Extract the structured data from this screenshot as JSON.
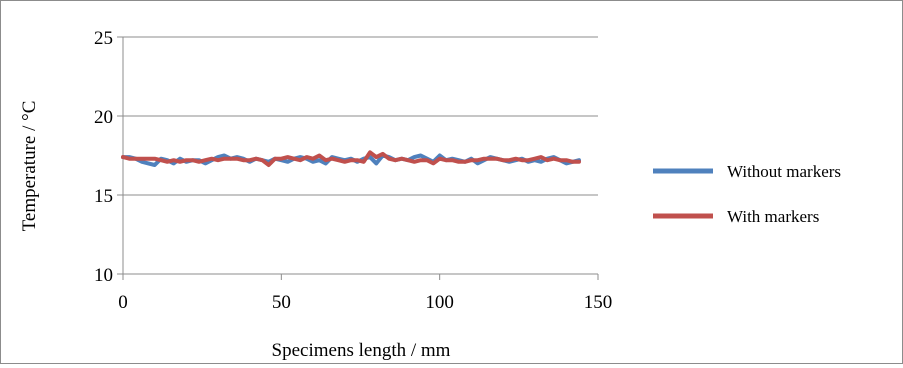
{
  "chart_data": {
    "type": "line",
    "title": "",
    "xlabel": "Specimens length / mm",
    "ylabel": "Temperature / °C",
    "xlim": [
      0,
      150
    ],
    "ylim": [
      10,
      25
    ],
    "x_ticks": [
      0,
      50,
      100,
      150
    ],
    "y_ticks": [
      10,
      15,
      20,
      25
    ],
    "x_tick_labels": [
      "0",
      "50",
      "100",
      "150"
    ],
    "y_tick_labels": [
      "10",
      "15",
      "20",
      "25"
    ],
    "grid": "horizontal",
    "legend": "right",
    "series": [
      {
        "name": "Without markers",
        "color": "#4f81bd",
        "x": [
          0,
          2,
          4,
          6,
          8,
          10,
          12,
          14,
          16,
          18,
          20,
          22,
          24,
          26,
          28,
          30,
          32,
          34,
          36,
          38,
          40,
          42,
          44,
          46,
          48,
          50,
          52,
          54,
          56,
          58,
          60,
          62,
          64,
          66,
          68,
          70,
          72,
          74,
          76,
          78,
          80,
          82,
          84,
          86,
          88,
          90,
          92,
          94,
          96,
          98,
          100,
          102,
          104,
          106,
          108,
          110,
          112,
          114,
          116,
          118,
          120,
          122,
          124,
          126,
          128,
          130,
          132,
          134,
          136,
          138,
          140,
          142,
          144
        ],
        "values": [
          17.4,
          17.4,
          17.3,
          17.1,
          17.0,
          16.9,
          17.3,
          17.2,
          17.0,
          17.3,
          17.1,
          17.2,
          17.2,
          17.0,
          17.2,
          17.4,
          17.5,
          17.3,
          17.4,
          17.3,
          17.1,
          17.3,
          17.2,
          17.1,
          17.3,
          17.2,
          17.1,
          17.3,
          17.4,
          17.3,
          17.1,
          17.2,
          17.0,
          17.4,
          17.3,
          17.2,
          17.3,
          17.1,
          17.3,
          17.4,
          17.0,
          17.5,
          17.4,
          17.2,
          17.3,
          17.2,
          17.4,
          17.5,
          17.3,
          17.1,
          17.5,
          17.2,
          17.3,
          17.2,
          17.1,
          17.3,
          17.0,
          17.2,
          17.4,
          17.3,
          17.2,
          17.1,
          17.2,
          17.3,
          17.1,
          17.2,
          17.1,
          17.3,
          17.4,
          17.2,
          17.0,
          17.1,
          17.2
        ]
      },
      {
        "name": "With markers",
        "color": "#c0504d",
        "x": [
          0,
          2,
          4,
          6,
          8,
          10,
          12,
          14,
          16,
          18,
          20,
          22,
          24,
          26,
          28,
          30,
          32,
          34,
          36,
          38,
          40,
          42,
          44,
          46,
          48,
          50,
          52,
          54,
          56,
          58,
          60,
          62,
          64,
          66,
          68,
          70,
          72,
          74,
          76,
          78,
          80,
          82,
          84,
          86,
          88,
          90,
          92,
          94,
          96,
          98,
          100,
          102,
          104,
          106,
          108,
          110,
          112,
          114,
          116,
          118,
          120,
          122,
          124,
          126,
          128,
          130,
          132,
          134,
          136,
          138,
          140,
          142,
          144
        ],
        "values": [
          17.4,
          17.3,
          17.3,
          17.3,
          17.3,
          17.3,
          17.2,
          17.1,
          17.2,
          17.1,
          17.2,
          17.2,
          17.1,
          17.2,
          17.3,
          17.2,
          17.3,
          17.3,
          17.3,
          17.2,
          17.2,
          17.3,
          17.2,
          16.9,
          17.3,
          17.3,
          17.4,
          17.3,
          17.2,
          17.4,
          17.3,
          17.5,
          17.2,
          17.3,
          17.2,
          17.1,
          17.2,
          17.2,
          17.1,
          17.7,
          17.4,
          17.6,
          17.3,
          17.2,
          17.3,
          17.2,
          17.1,
          17.2,
          17.2,
          17.0,
          17.3,
          17.2,
          17.2,
          17.1,
          17.1,
          17.2,
          17.2,
          17.3,
          17.3,
          17.3,
          17.2,
          17.2,
          17.3,
          17.2,
          17.2,
          17.3,
          17.4,
          17.2,
          17.3,
          17.2,
          17.2,
          17.1,
          17.1
        ]
      }
    ]
  }
}
